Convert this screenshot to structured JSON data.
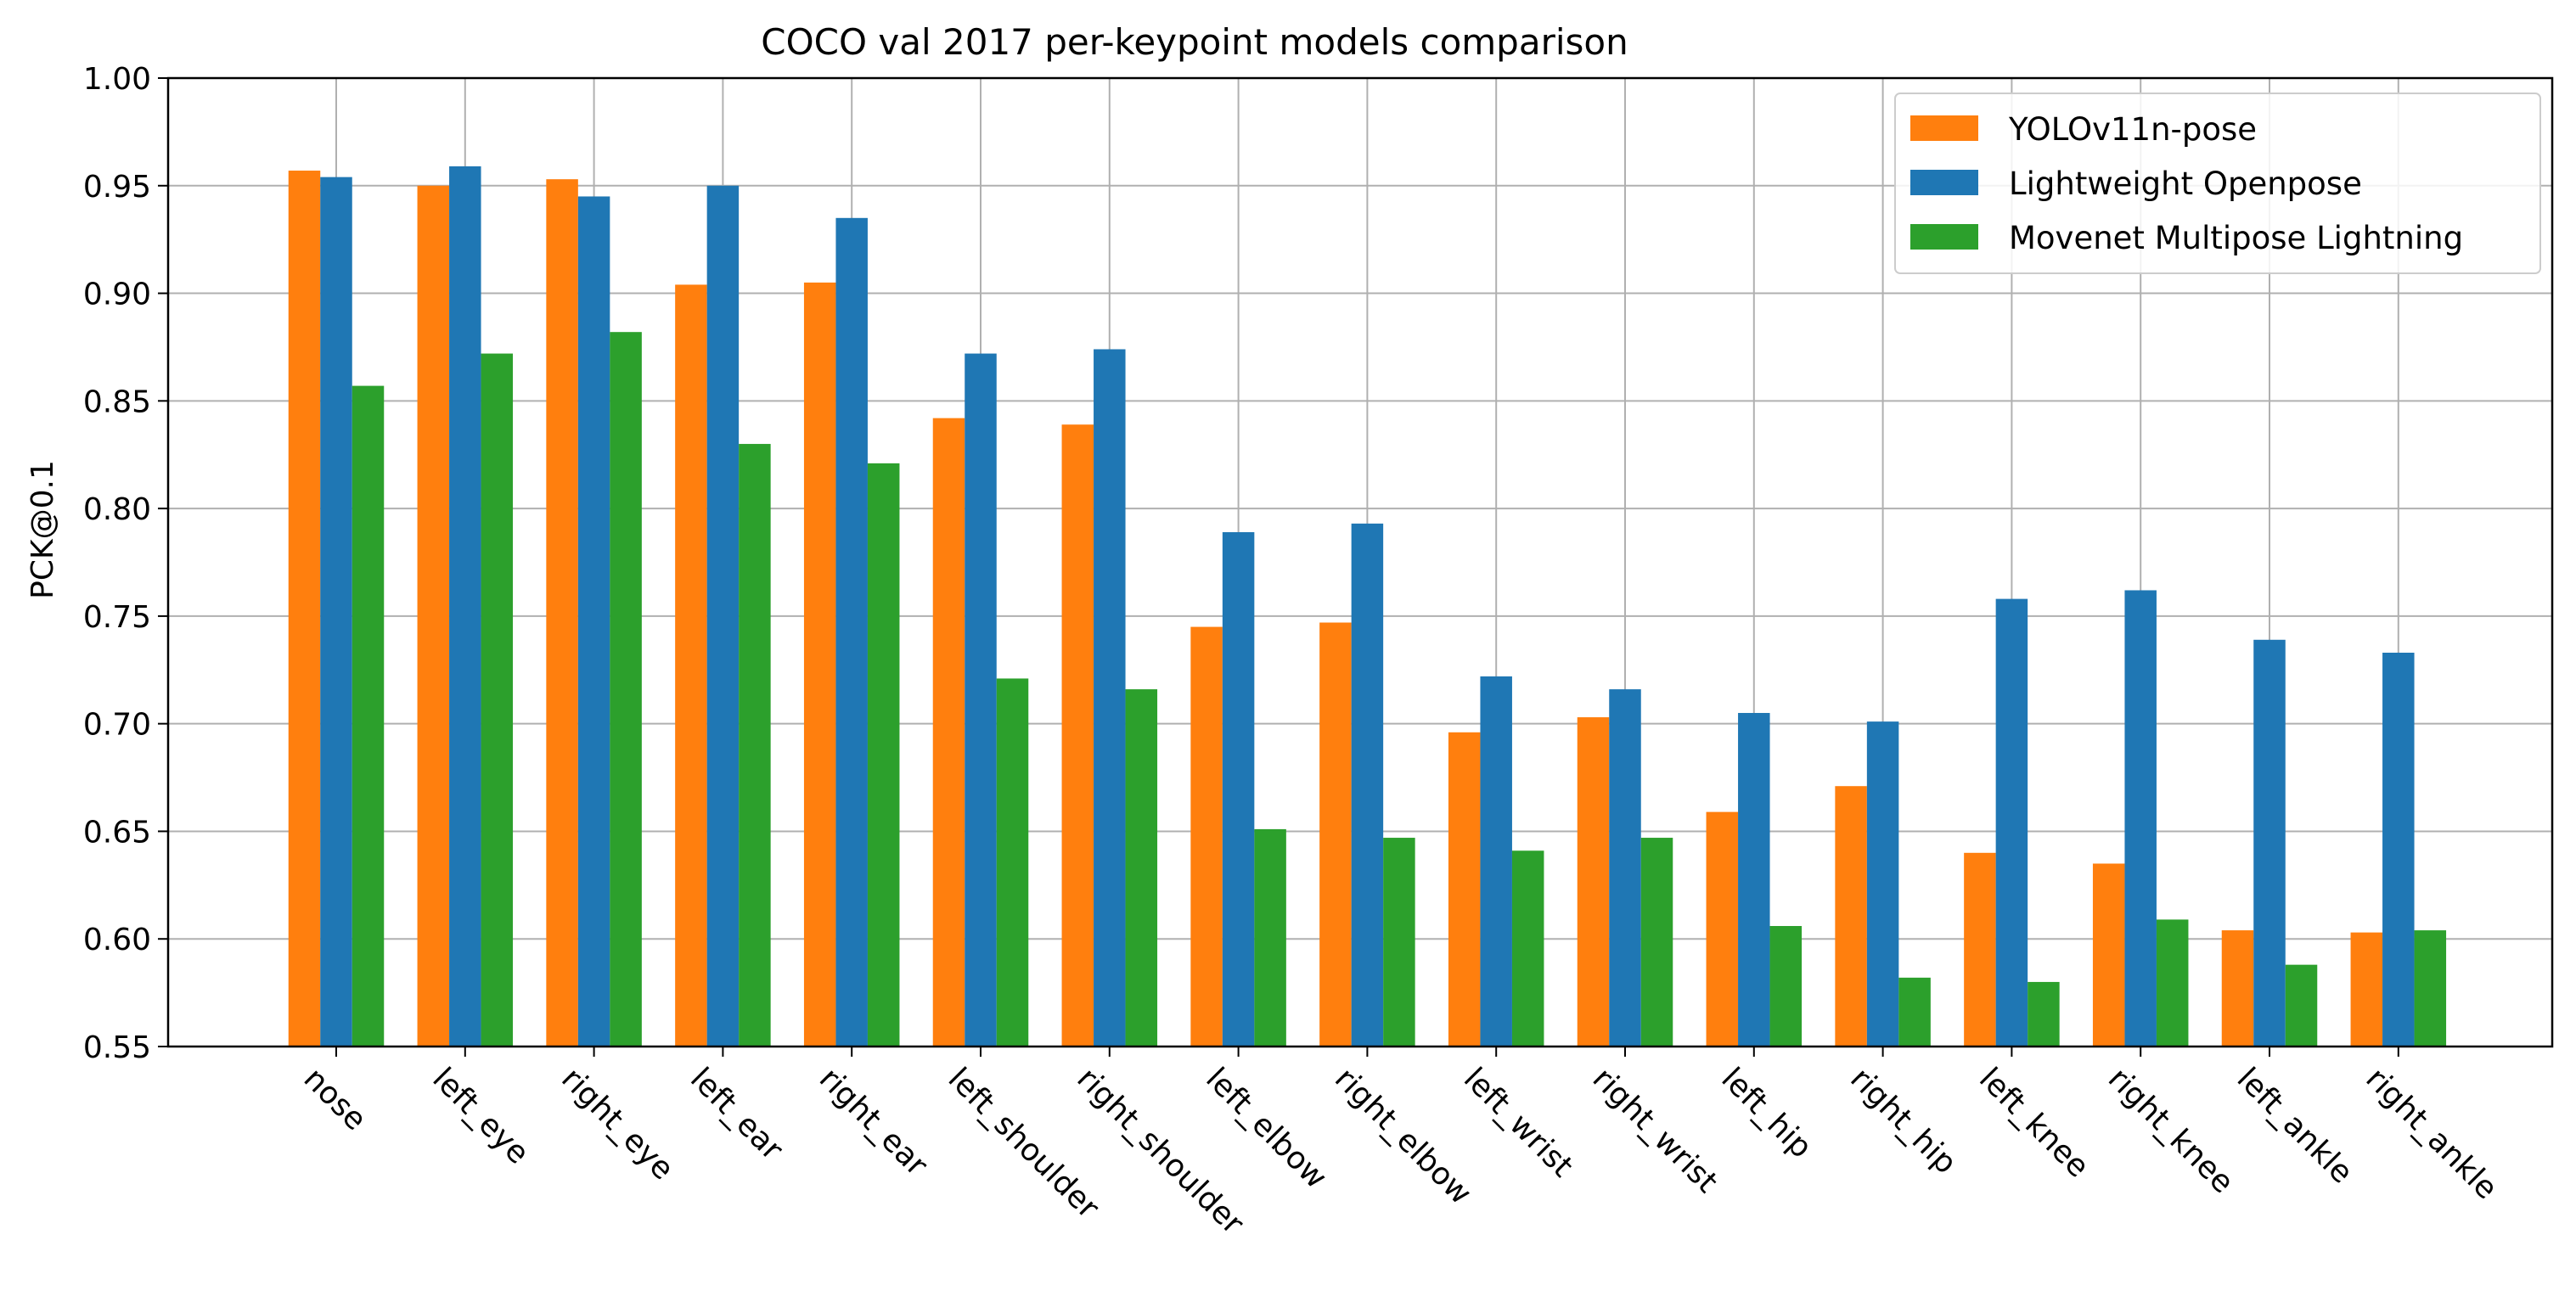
{
  "chart_data": {
    "type": "bar",
    "title": "COCO val 2017 per-keypoint models comparison",
    "xlabel": "",
    "ylabel": "PCK@0.1",
    "ylim": [
      0.55,
      1.0
    ],
    "yticks": [
      "0.55",
      "0.60",
      "0.65",
      "0.70",
      "0.75",
      "0.80",
      "0.85",
      "0.90",
      "0.95",
      "1.00"
    ],
    "grid": true,
    "legend_position": "top-right",
    "categories": [
      "nose",
      "left_eye",
      "right_eye",
      "left_ear",
      "right_ear",
      "left_shoulder",
      "right_shoulder",
      "left_elbow",
      "right_elbow",
      "left_wrist",
      "right_wrist",
      "left_hip",
      "right_hip",
      "left_knee",
      "right_knee",
      "left_ankle",
      "right_ankle"
    ],
    "series": [
      {
        "name": "YOLOv11n-pose",
        "color": "#ff7f0e",
        "values": [
          0.957,
          0.95,
          0.953,
          0.904,
          0.905,
          0.842,
          0.839,
          0.745,
          0.747,
          0.696,
          0.703,
          0.659,
          0.671,
          0.64,
          0.635,
          0.604,
          0.603
        ]
      },
      {
        "name": "Lightweight Openpose",
        "color": "#1f77b4",
        "values": [
          0.954,
          0.959,
          0.945,
          0.95,
          0.935,
          0.872,
          0.874,
          0.789,
          0.793,
          0.722,
          0.716,
          0.705,
          0.701,
          0.758,
          0.762,
          0.739,
          0.733
        ]
      },
      {
        "name": "Movenet Multipose Lightning",
        "color": "#2ca02c",
        "values": [
          0.857,
          0.872,
          0.882,
          0.83,
          0.821,
          0.721,
          0.716,
          0.651,
          0.647,
          0.641,
          0.647,
          0.606,
          0.582,
          0.58,
          0.609,
          0.588,
          0.604
        ]
      }
    ]
  }
}
